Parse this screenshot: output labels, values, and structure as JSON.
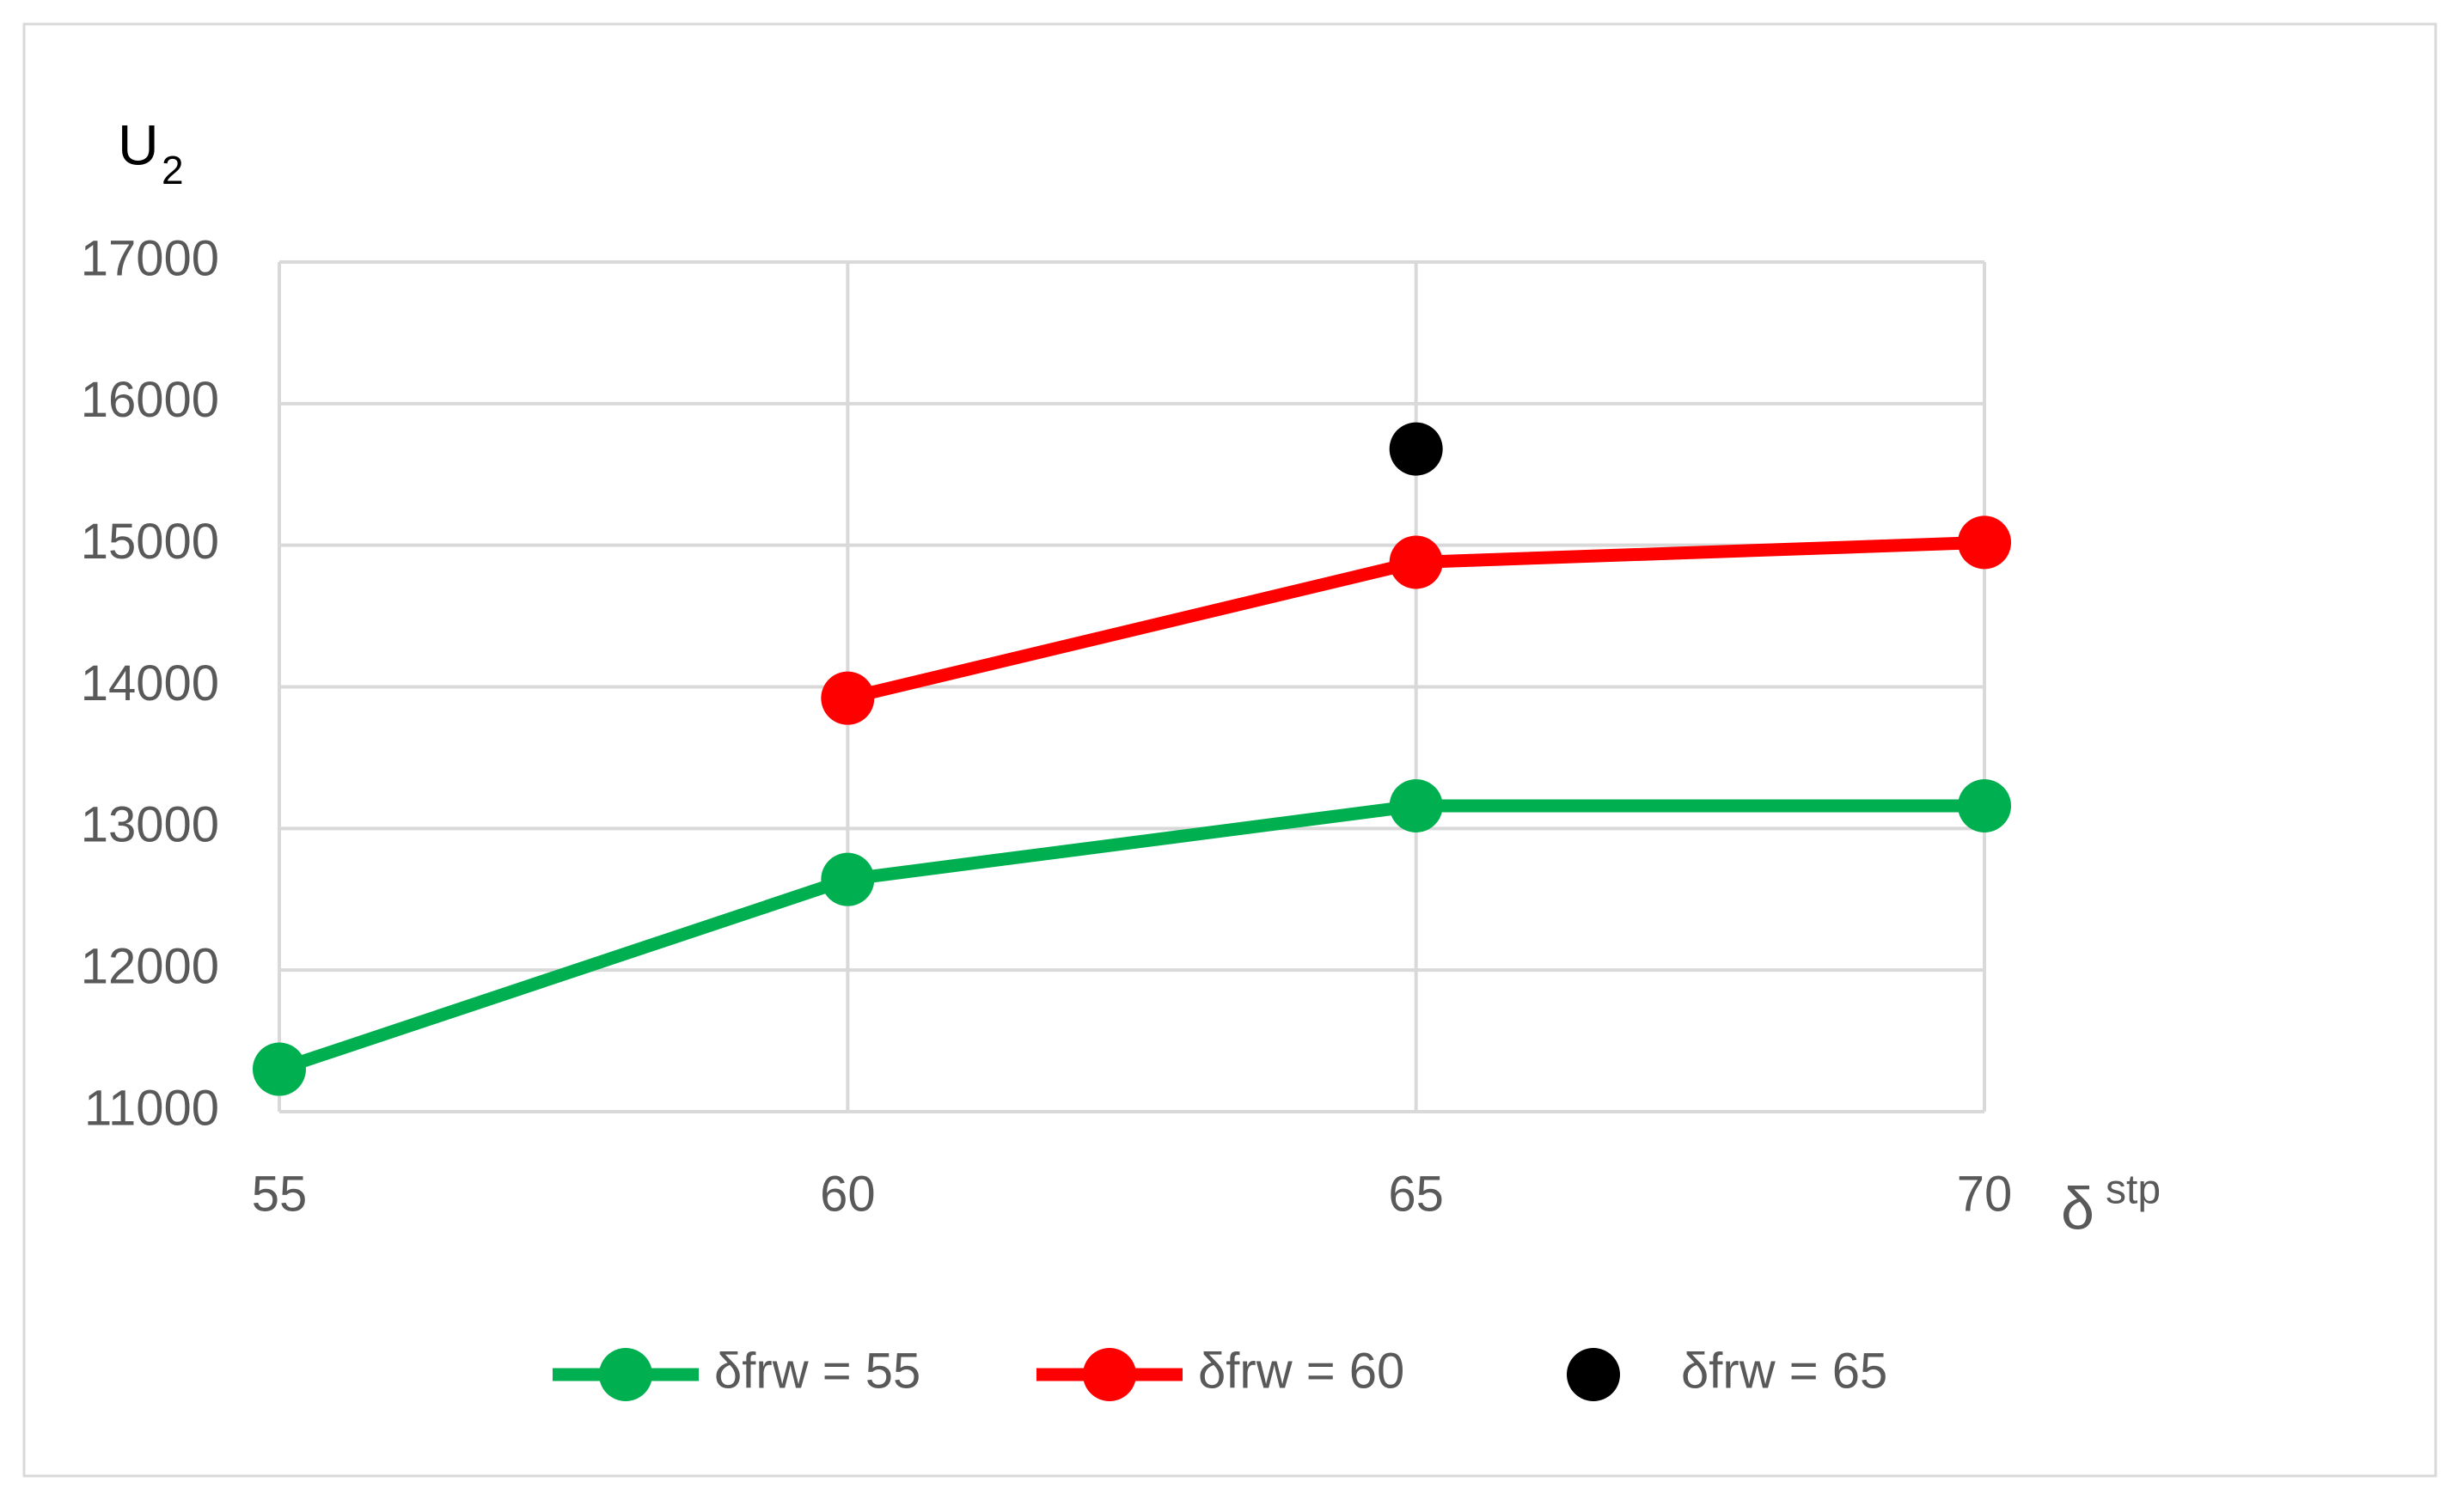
{
  "chart_data": {
    "type": "line",
    "ylabel": "U",
    "ylabel_sub": "2",
    "xlabel": "δ",
    "xlabel_sup": "stp",
    "x": [
      55,
      60,
      65,
      70
    ],
    "xlim": [
      55,
      70
    ],
    "xticks": [
      55,
      60,
      65,
      70
    ],
    "ylim": [
      11000,
      17000
    ],
    "yticks": [
      11000,
      12000,
      13000,
      14000,
      15000,
      16000,
      17000
    ],
    "grid": true,
    "legend": "bottom",
    "series": [
      {
        "name": "δfrw = 55",
        "color": "#00b050",
        "show_line": true,
        "values": [
          11300,
          12640,
          13160,
          13160
        ]
      },
      {
        "name": "δfrw = 60",
        "color": "#ff0000",
        "show_line": true,
        "values": [
          null,
          13920,
          14880,
          15020
        ]
      },
      {
        "name": "δfrw = 65",
        "color": "#000000",
        "show_line": false,
        "values": [
          null,
          null,
          15680,
          null
        ]
      }
    ]
  }
}
